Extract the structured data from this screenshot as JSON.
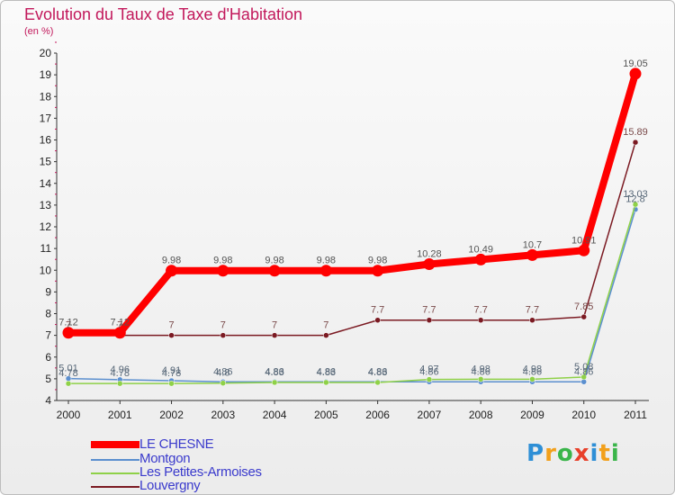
{
  "title": "Evolution du Taux de Taxe d'Habitation",
  "subtitle": "(en %)",
  "logo": {
    "letters": [
      "P",
      "r",
      "o",
      "x",
      "i",
      "t",
      "i"
    ],
    "colors": [
      "#2e8fd6",
      "#f2a01b",
      "#3ab54a",
      "#e8402a",
      "#2e8fd6",
      "#f2a01b",
      "#3ab54a"
    ]
  },
  "chart_data": {
    "type": "line",
    "title": "Evolution du Taux de Taxe d'Habitation",
    "ylabel": "(en %)",
    "xlabel": "",
    "ylim": [
      4,
      20
    ],
    "yticks": [
      "4",
      "5",
      "6",
      "7",
      "8",
      "9",
      "10",
      "11",
      "12",
      "13",
      "14",
      "15",
      "16",
      "17",
      "18",
      "19",
      "20"
    ],
    "grid": false,
    "categories": [
      "2000",
      "2001",
      "2002",
      "2003",
      "2004",
      "2005",
      "2006",
      "2007",
      "2008",
      "2009",
      "2010",
      "2011"
    ],
    "legend_position": "bottom-left",
    "series": [
      {
        "name": "Louvergny",
        "color": "#7b1a22",
        "values": [
          7.0,
          7.0,
          7.0,
          7.0,
          7.0,
          7.0,
          7.7,
          7.7,
          7.7,
          7.7,
          7.85,
          15.89
        ],
        "labels": [
          "7",
          "7",
          "7",
          "7",
          "7",
          "7",
          "7.7",
          "7.7",
          "7.7",
          "7.7",
          "7.85",
          "15.89"
        ]
      },
      {
        "name": "Montgon",
        "color": "#5b8fcf",
        "values": [
          5.01,
          4.96,
          4.91,
          4.86,
          4.86,
          4.86,
          4.86,
          4.86,
          4.86,
          4.86,
          4.86,
          12.8
        ],
        "labels": [
          "5.01",
          "4.96",
          "4.91",
          "4.86",
          "4.86",
          "4.86",
          "4.86",
          "4.86",
          "4.86",
          "4.86",
          "4.86",
          "12.8"
        ]
      },
      {
        "name": "Les Petites-Armoises",
        "color": "#8fd148",
        "values": [
          4.78,
          4.78,
          4.78,
          4.8,
          4.83,
          4.83,
          4.83,
          4.97,
          4.98,
          4.98,
          5.08,
          13.03
        ],
        "labels": [
          "4.78",
          "4.78",
          "4.78",
          "4.8",
          "4.83",
          "4.83",
          "4.83",
          "4.97",
          "4.98",
          "4.98",
          "5.08",
          "13.03"
        ]
      },
      {
        "name": "LE CHESNE",
        "color": "#ff0000",
        "values": [
          7.12,
          7.12,
          9.98,
          9.98,
          9.98,
          9.98,
          9.98,
          10.28,
          10.49,
          10.7,
          10.91,
          19.05
        ],
        "labels": [
          "7.12",
          "7.12",
          "9.98",
          "9.98",
          "9.98",
          "9.98",
          "9.98",
          "10.28",
          "10.49",
          "10.7",
          "10.91",
          "19.05"
        ]
      }
    ],
    "legend": [
      {
        "name": "LE CHESNE",
        "color": "#ff0000"
      },
      {
        "name": "Montgon",
        "color": "#5b8fcf"
      },
      {
        "name": "Les Petites-Armoises",
        "color": "#8fd148"
      },
      {
        "name": "Louvergny",
        "color": "#7b1a22"
      }
    ]
  }
}
